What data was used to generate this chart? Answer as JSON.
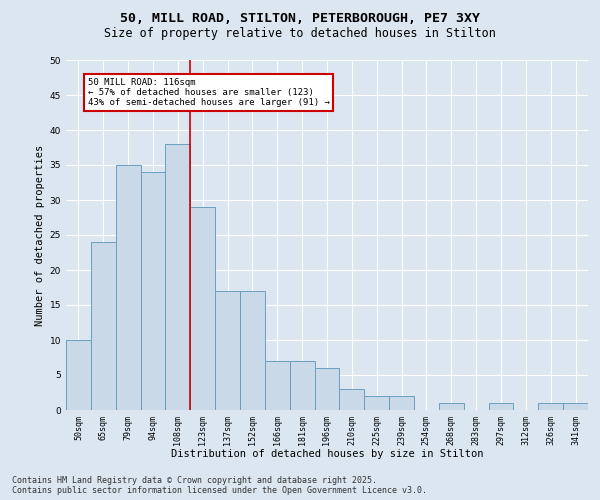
{
  "title_line1": "50, MILL ROAD, STILTON, PETERBOROUGH, PE7 3XY",
  "title_line2": "Size of property relative to detached houses in Stilton",
  "xlabel": "Distribution of detached houses by size in Stilton",
  "ylabel": "Number of detached properties",
  "categories": [
    "50sqm",
    "65sqm",
    "79sqm",
    "94sqm",
    "108sqm",
    "123sqm",
    "137sqm",
    "152sqm",
    "166sqm",
    "181sqm",
    "196sqm",
    "210sqm",
    "225sqm",
    "239sqm",
    "254sqm",
    "268sqm",
    "283sqm",
    "297sqm",
    "312sqm",
    "326sqm",
    "341sqm"
  ],
  "values": [
    10,
    24,
    35,
    34,
    38,
    29,
    17,
    17,
    7,
    7,
    6,
    3,
    2,
    2,
    0,
    1,
    0,
    1,
    0,
    1,
    1
  ],
  "bar_color": "#c9d9e8",
  "bar_edge_color": "#6a9ec0",
  "vline_color": "#cc0000",
  "annotation_box_edge": "#cc0000",
  "ylim": [
    0,
    50
  ],
  "yticks": [
    0,
    5,
    10,
    15,
    20,
    25,
    30,
    35,
    40,
    45,
    50
  ],
  "bg_color": "#dce6f0",
  "plot_bg_color": "#dce6f0",
  "marker_label": "50 MILL ROAD: 116sqm",
  "annotation_line2": "← 57% of detached houses are smaller (123)",
  "annotation_line3": "43% of semi-detached houses are larger (91) →",
  "footer_line1": "Contains HM Land Registry data © Crown copyright and database right 2025.",
  "footer_line2": "Contains public sector information licensed under the Open Government Licence v3.0.",
  "vline_x_index": 5
}
